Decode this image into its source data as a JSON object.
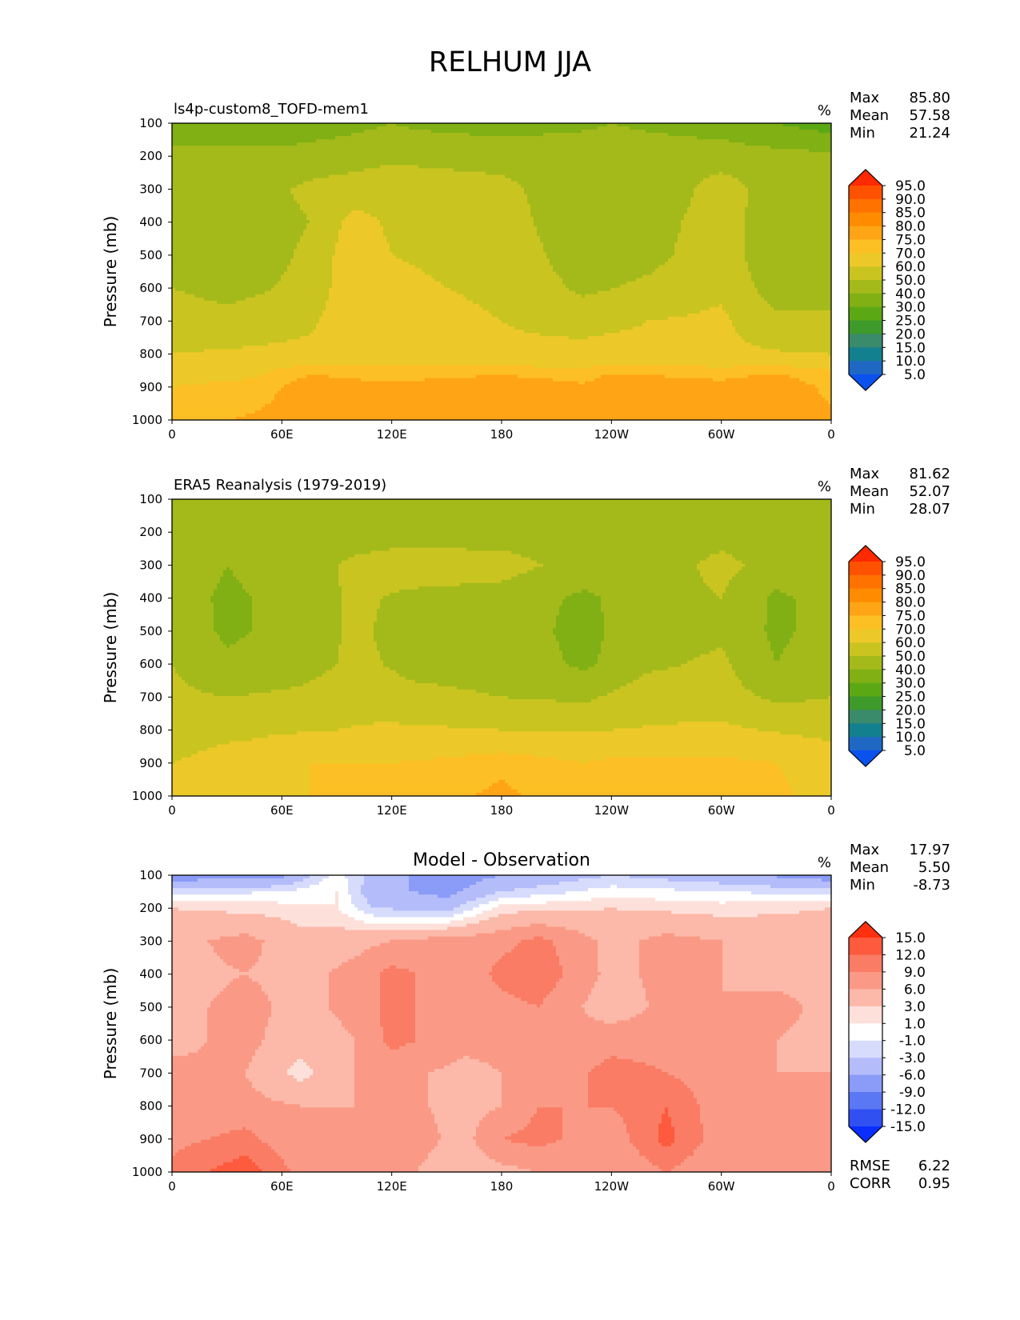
{
  "figure": {
    "title": "RELHUM JJA"
  },
  "chart_data": [
    {
      "type": "heatmap",
      "title": "ls4p-custom8_TOFD-mem1",
      "title_align": "left",
      "units": "%",
      "xlabel": "",
      "ylabel": "Pressure (mb)",
      "x_ticks": [
        "0",
        "60E",
        "120E",
        "180",
        "120W",
        "60W",
        "0"
      ],
      "y_ticks": [
        "100",
        "200",
        "300",
        "400",
        "500",
        "600",
        "700",
        "800",
        "900",
        "1000"
      ],
      "ylim": [
        1000,
        100
      ],
      "stats": [
        {
          "label": "Max",
          "value": "85.80"
        },
        {
          "label": "Mean",
          "value": "57.58"
        },
        {
          "label": "Min",
          "value": "21.24"
        }
      ],
      "colorbar": {
        "levels": [
          "95.0",
          "90.0",
          "85.0",
          "80.0",
          "75.0",
          "70.0",
          "60.0",
          "50.0",
          "40.0",
          "30.0",
          "25.0",
          "20.0",
          "15.0",
          "10.0",
          "5.0"
        ],
        "colors": [
          "#ff2a00",
          "#ff5200",
          "#ff7200",
          "#ff8c00",
          "#ffa414",
          "#fcbf24",
          "#ecc928",
          "#c9c420",
          "#a4ba1a",
          "#80b014",
          "#5ba815",
          "#3f9a2c",
          "#3a8a6c",
          "#12808e",
          "#1e68c4",
          "#0a52ee"
        ]
      },
      "rows": [
        {
          "p": 100,
          "lon": [
            0,
            60,
            120,
            180,
            240,
            300,
            360
          ],
          "rh": [
            32,
            33,
            40,
            33,
            40,
            36,
            24
          ]
        },
        {
          "p": 150,
          "lon": [
            0,
            60,
            120,
            180,
            240,
            300,
            360
          ],
          "rh": [
            36,
            38,
            43,
            42,
            42,
            40,
            34
          ]
        },
        {
          "p": 200,
          "lon": [
            0,
            60,
            120,
            180,
            240,
            300,
            360
          ],
          "rh": [
            45,
            43,
            48,
            46,
            45,
            44,
            42
          ]
        },
        {
          "p": 300,
          "lon": [
            0,
            30,
            75,
            120,
            180,
            225,
            260,
            300,
            330,
            360
          ],
          "rh": [
            48,
            44,
            52,
            56,
            53,
            42,
            40,
            56,
            44,
            46
          ]
        },
        {
          "p": 400,
          "lon": [
            0,
            30,
            75,
            100,
            120,
            180,
            225,
            260,
            300,
            330,
            360
          ],
          "rh": [
            44,
            42,
            50,
            64,
            58,
            55,
            42,
            45,
            56,
            42,
            44
          ]
        },
        {
          "p": 500,
          "lon": [
            0,
            30,
            75,
            100,
            120,
            180,
            225,
            260,
            300,
            330,
            360
          ],
          "rh": [
            44,
            42,
            52,
            67,
            60,
            57,
            44,
            47,
            56,
            42,
            44
          ]
        },
        {
          "p": 600,
          "lon": [
            0,
            30,
            75,
            100,
            120,
            180,
            225,
            260,
            300,
            330,
            360
          ],
          "rh": [
            50,
            46,
            53,
            68,
            62,
            58,
            48,
            52,
            58,
            45,
            46
          ]
        },
        {
          "p": 700,
          "lon": [
            0,
            30,
            75,
            100,
            120,
            180,
            225,
            260,
            300,
            330,
            360
          ],
          "rh": [
            56,
            54,
            58,
            68,
            65,
            60,
            56,
            60,
            62,
            52,
            52
          ]
        },
        {
          "p": 800,
          "lon": [
            0,
            60,
            120,
            180,
            240,
            300,
            360
          ],
          "rh": [
            60,
            62,
            64,
            62,
            64,
            62,
            60
          ]
        },
        {
          "p": 850,
          "lon": [
            0,
            45,
            75,
            120,
            180,
            225,
            240,
            300,
            330,
            360
          ],
          "rh": [
            67,
            68,
            74,
            72,
            73,
            71,
            74,
            72,
            74,
            70
          ]
        },
        {
          "p": 900,
          "lon": [
            0,
            45,
            75,
            120,
            180,
            225,
            240,
            300,
            330,
            360
          ],
          "rh": [
            70,
            72,
            78,
            76,
            80,
            76,
            80,
            77,
            80,
            73
          ]
        },
        {
          "p": 1000,
          "lon": [
            0,
            45,
            75,
            120,
            180,
            225,
            240,
            300,
            330,
            360
          ],
          "rh": [
            72,
            76,
            78,
            78,
            78,
            78,
            78,
            78,
            78,
            77
          ]
        }
      ]
    },
    {
      "type": "heatmap",
      "title": "ERA5 Reanalysis (1979-2019)",
      "title_align": "left",
      "units": "%",
      "xlabel": "",
      "ylabel": "Pressure (mb)",
      "x_ticks": [
        "0",
        "60E",
        "120E",
        "180",
        "120W",
        "60W",
        "0"
      ],
      "y_ticks": [
        "100",
        "200",
        "300",
        "400",
        "500",
        "600",
        "700",
        "800",
        "900",
        "1000"
      ],
      "ylim": [
        1000,
        100
      ],
      "stats": [
        {
          "label": "Max",
          "value": "81.62"
        },
        {
          "label": "Mean",
          "value": "52.07"
        },
        {
          "label": "Min",
          "value": "28.07"
        }
      ],
      "colorbar": {
        "levels": [
          "95.0",
          "90.0",
          "85.0",
          "80.0",
          "75.0",
          "70.0",
          "60.0",
          "50.0",
          "40.0",
          "30.0",
          "25.0",
          "20.0",
          "15.0",
          "10.0",
          "5.0"
        ],
        "colors": [
          "#ff2a00",
          "#ff5200",
          "#ff7200",
          "#ff8c00",
          "#ffa414",
          "#fcbf24",
          "#ecc928",
          "#c9c420",
          "#a4ba1a",
          "#80b014",
          "#5ba815",
          "#3f9a2c",
          "#3a8a6c",
          "#12808e",
          "#1e68c4",
          "#0a52ee"
        ]
      },
      "rows": [
        {
          "p": 100,
          "lon": [
            0,
            60,
            120,
            180,
            240,
            300,
            360
          ],
          "rh": [
            42,
            40,
            44,
            42,
            40,
            42,
            40
          ]
        },
        {
          "p": 200,
          "lon": [
            0,
            60,
            120,
            180,
            240,
            300,
            360
          ],
          "rh": [
            44,
            43,
            46,
            45,
            44,
            46,
            42
          ]
        },
        {
          "p": 300,
          "lon": [
            0,
            30,
            70,
            100,
            130,
            180,
            225,
            260,
            300,
            330,
            360
          ],
          "rh": [
            46,
            40,
            46,
            52,
            55,
            54,
            46,
            44,
            53,
            46,
            46
          ]
        },
        {
          "p": 400,
          "lon": [
            0,
            30,
            70,
            100,
            130,
            180,
            225,
            260,
            300,
            330,
            360
          ],
          "rh": [
            45,
            38,
            44,
            52,
            48,
            46,
            38,
            46,
            50,
            38,
            44
          ]
        },
        {
          "p": 500,
          "lon": [
            0,
            30,
            70,
            100,
            130,
            180,
            225,
            260,
            300,
            330,
            360
          ],
          "rh": [
            47,
            38,
            44,
            52,
            46,
            45,
            37,
            46,
            48,
            38,
            44
          ]
        },
        {
          "p": 600,
          "lon": [
            0,
            30,
            70,
            100,
            130,
            180,
            225,
            260,
            300,
            330,
            360
          ],
          "rh": [
            50,
            42,
            46,
            52,
            48,
            47,
            38,
            48,
            52,
            40,
            46
          ]
        },
        {
          "p": 700,
          "lon": [
            0,
            30,
            70,
            100,
            130,
            180,
            225,
            260,
            300,
            330,
            360
          ],
          "rh": [
            52,
            50,
            52,
            56,
            52,
            50,
            48,
            56,
            54,
            48,
            50
          ]
        },
        {
          "p": 800,
          "lon": [
            0,
            60,
            120,
            180,
            240,
            300,
            360
          ],
          "rh": [
            56,
            58,
            62,
            60,
            60,
            62,
            56
          ]
        },
        {
          "p": 850,
          "lon": [
            0,
            45,
            75,
            120,
            180,
            225,
            240,
            300,
            330,
            360
          ],
          "rh": [
            58,
            62,
            68,
            64,
            68,
            65,
            66,
            66,
            66,
            62
          ]
        },
        {
          "p": 900,
          "lon": [
            0,
            45,
            75,
            120,
            180,
            225,
            240,
            300,
            330,
            360
          ],
          "rh": [
            60,
            64,
            70,
            70,
            74,
            70,
            72,
            72,
            70,
            65
          ]
        },
        {
          "p": 1000,
          "lon": [
            0,
            45,
            75,
            120,
            180,
            225,
            240,
            300,
            330,
            360
          ],
          "rh": [
            62,
            66,
            70,
            72,
            76,
            72,
            74,
            72,
            72,
            66
          ]
        }
      ]
    },
    {
      "type": "heatmap",
      "title": "Model - Observation",
      "title_align": "center",
      "units": "%",
      "xlabel": "",
      "ylabel": "Pressure (mb)",
      "x_ticks": [
        "0",
        "60E",
        "120E",
        "180",
        "120W",
        "60W",
        "0"
      ],
      "y_ticks": [
        "100",
        "200",
        "300",
        "400",
        "500",
        "600",
        "700",
        "800",
        "900",
        "1000"
      ],
      "ylim": [
        1000,
        100
      ],
      "stats": [
        {
          "label": "Max",
          "value": "17.97"
        },
        {
          "label": "Mean",
          "value": "5.50"
        },
        {
          "label": "Min",
          "value": "-8.73"
        }
      ],
      "extra_stats": [
        {
          "label": "RMSE",
          "value": "6.22"
        },
        {
          "label": "CORR",
          "value": "0.95"
        }
      ],
      "colorbar": {
        "levels": [
          "15.0",
          "12.0",
          "9.0",
          "6.0",
          "3.0",
          "1.0",
          "-1.0",
          "-3.0",
          "-6.0",
          "-9.0",
          "-12.0",
          "-15.0"
        ],
        "colors": [
          "#ff3010",
          "#fd5a3e",
          "#fa7c64",
          "#fa9a86",
          "#fcb8a8",
          "#fde0da",
          "#ffffff",
          "#d8dcfc",
          "#b4bdfa",
          "#8a9cf8",
          "#5a78f4",
          "#3050f2",
          "#0a2eff"
        ]
      },
      "rows": [
        {
          "p": 100,
          "lon": [
            0,
            60,
            90,
            110,
            150,
            180,
            240,
            300,
            360
          ],
          "rh": [
            -8,
            -7,
            0,
            -4,
            -8,
            -6,
            -3,
            -5,
            -8
          ]
        },
        {
          "p": 150,
          "lon": [
            0,
            60,
            90,
            110,
            150,
            180,
            240,
            300,
            360
          ],
          "rh": [
            -2,
            -1,
            1,
            -5,
            -7,
            -3,
            0,
            -1,
            -2
          ]
        },
        {
          "p": 200,
          "lon": [
            0,
            60,
            90,
            110,
            150,
            180,
            240,
            300,
            360
          ],
          "rh": [
            3,
            2,
            1,
            -3,
            -4,
            2,
            3,
            2,
            3
          ]
        },
        {
          "p": 300,
          "lon": [
            0,
            40,
            70,
            100,
            140,
            180,
            200,
            240,
            270,
            300,
            330,
            360
          ],
          "rh": [
            5,
            7,
            4,
            5,
            7,
            8,
            10,
            5,
            7,
            6,
            5,
            5
          ]
        },
        {
          "p": 400,
          "lon": [
            0,
            40,
            70,
            100,
            120,
            160,
            180,
            200,
            240,
            270,
            300,
            330,
            360
          ],
          "rh": [
            5,
            6,
            5,
            7,
            10,
            7,
            10,
            11,
            5,
            7,
            6,
            5,
            5
          ]
        },
        {
          "p": 500,
          "lon": [
            0,
            40,
            70,
            100,
            120,
            160,
            180,
            200,
            240,
            270,
            300,
            330,
            360
          ],
          "rh": [
            5,
            7,
            5,
            7,
            10,
            7,
            8,
            9,
            4,
            7,
            6,
            7,
            5
          ]
        },
        {
          "p": 600,
          "lon": [
            0,
            40,
            70,
            100,
            120,
            160,
            180,
            200,
            240,
            270,
            300,
            330,
            360
          ],
          "rh": [
            5,
            7,
            4,
            6,
            10,
            7,
            7,
            6,
            8,
            8,
            7,
            6,
            5
          ]
        },
        {
          "p": 700,
          "lon": [
            0,
            40,
            70,
            100,
            120,
            160,
            180,
            200,
            240,
            270,
            300,
            330,
            360
          ],
          "rh": [
            7,
            6,
            2,
            6,
            7,
            5,
            6,
            7,
            10,
            9,
            7,
            6,
            6
          ]
        },
        {
          "p": 800,
          "lon": [
            0,
            40,
            70,
            100,
            120,
            160,
            180,
            200,
            240,
            270,
            300,
            330,
            360
          ],
          "rh": [
            7,
            7,
            6,
            6,
            7,
            5,
            6,
            9,
            9,
            12,
            7,
            6,
            6
          ]
        },
        {
          "p": 900,
          "lon": [
            0,
            40,
            70,
            100,
            120,
            160,
            180,
            200,
            240,
            270,
            300,
            330,
            360
          ],
          "rh": [
            8,
            10,
            6,
            7,
            8,
            5,
            9,
            10,
            7,
            13,
            7,
            9,
            7
          ]
        },
        {
          "p": 1000,
          "lon": [
            0,
            40,
            70,
            100,
            120,
            160,
            180,
            200,
            240,
            270,
            300,
            330,
            360
          ],
          "rh": [
            10,
            14,
            8,
            6,
            7,
            4,
            5,
            6,
            6,
            9,
            6,
            8,
            8
          ]
        }
      ]
    }
  ]
}
